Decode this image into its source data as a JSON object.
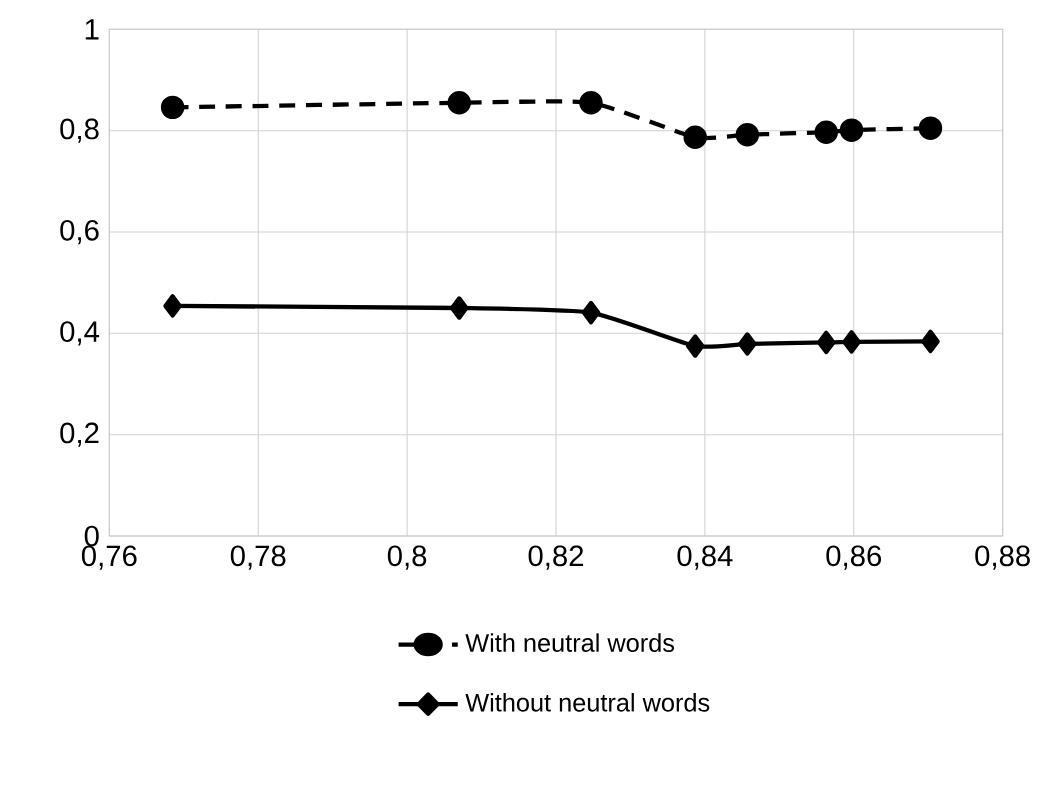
{
  "chart_data": {
    "type": "line",
    "xlim": [
      0.76,
      0.88
    ],
    "ylim": [
      0,
      1
    ],
    "xticks": [
      {
        "value": 0.76,
        "label": "0,76"
      },
      {
        "value": 0.78,
        "label": "0,78"
      },
      {
        "value": 0.8,
        "label": "0,8"
      },
      {
        "value": 0.82,
        "label": "0,82"
      },
      {
        "value": 0.84,
        "label": "0,84"
      },
      {
        "value": 0.86,
        "label": "0,86"
      },
      {
        "value": 0.88,
        "label": "0,88"
      }
    ],
    "yticks": [
      0,
      {
        "value": 0.2,
        "label": "0,2"
      },
      {
        "value": 0.4,
        "label": "0,4"
      },
      {
        "value": 0.6,
        "label": "0,6"
      },
      {
        "value": 0.8,
        "label": "0,8"
      },
      1
    ],
    "grid": true,
    "legend": "bottom",
    "series": [
      {
        "name": "With neutral words",
        "color": "#000000",
        "marker": "circle",
        "line_style": "dashed",
        "x": [
          0.7685,
          0.807,
          0.8247,
          0.8387,
          0.8457,
          0.8563,
          0.8597,
          0.8703
        ],
        "values": [
          0.846,
          0.855,
          0.855,
          0.787,
          0.792,
          0.797,
          0.801,
          0.805
        ]
      },
      {
        "name": "Without neutral words",
        "color": "#000000",
        "marker": "diamond",
        "line_style": "solid",
        "x": [
          0.7685,
          0.807,
          0.8247,
          0.8387,
          0.8457,
          0.8563,
          0.8597,
          0.8703
        ],
        "values": [
          0.454,
          0.45,
          0.441,
          0.375,
          0.379,
          0.382,
          0.383,
          0.384
        ]
      }
    ]
  }
}
